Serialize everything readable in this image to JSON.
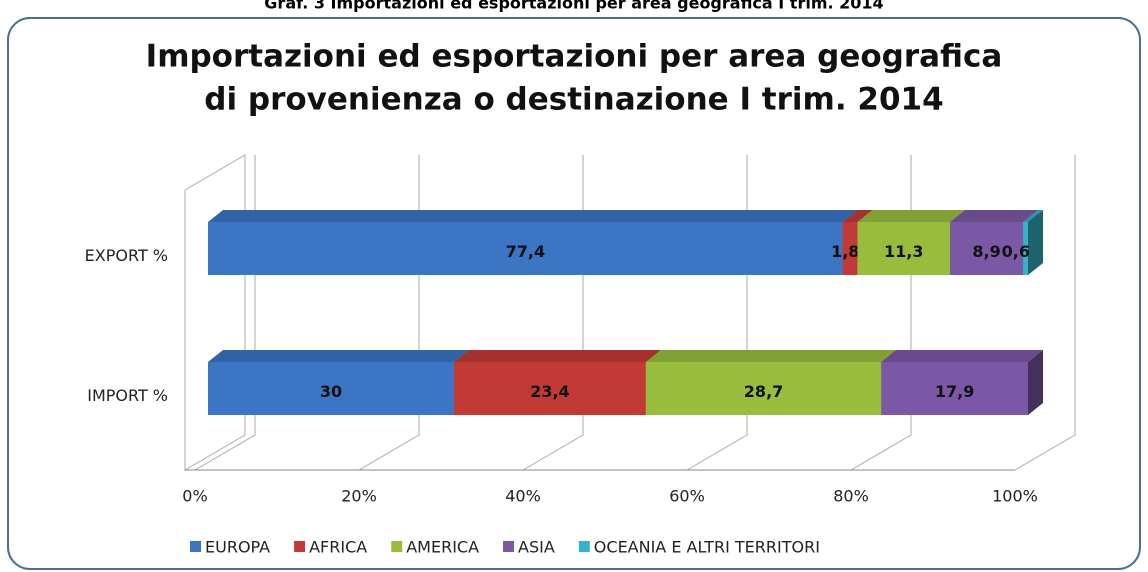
{
  "chart_data": {
    "type": "stacked-bar-horizontal",
    "caption": "Graf. 3 Importazioni ed esportazioni per area geografica I trim. 2014",
    "title": [
      "Importazioni ed esportazioni per area geografica",
      "di provenienza o destinazione I trim. 2014"
    ],
    "categories": [
      "EXPORT  %",
      "IMPORT  %"
    ],
    "series": [
      {
        "name": "EUROPA",
        "color": "#3b75c4",
        "values": [
          77.4,
          30
        ],
        "value_labels": [
          "77,4",
          "30"
        ]
      },
      {
        "name": "AFRICA",
        "color": "#c23a36",
        "values": [
          1.8,
          23.4
        ],
        "value_labels": [
          "1,8",
          "23,4"
        ]
      },
      {
        "name": "AMERICA",
        "color": "#98bd3d",
        "values": [
          11.3,
          28.7
        ],
        "value_labels": [
          "11,3",
          "28,7"
        ]
      },
      {
        "name": "ASIA",
        "color": "#7b58a5",
        "values": [
          8.9,
          17.9
        ],
        "value_labels": [
          "8,9",
          "17,9"
        ]
      },
      {
        "name": "OCEANIA E ALTRI TERRITORI",
        "color": "#36b3c9",
        "values": [
          0.6,
          null
        ],
        "value_labels": [
          "0,6",
          null
        ]
      }
    ],
    "xlim": [
      0,
      100
    ],
    "xticks": [
      {
        "value": 0,
        "label": "0%"
      },
      {
        "value": 20,
        "label": "20%"
      },
      {
        "value": 40,
        "label": "40%"
      },
      {
        "value": 60,
        "label": "60%"
      },
      {
        "value": 80,
        "label": "80%"
      },
      {
        "value": 100,
        "label": "100%"
      }
    ],
    "grid": true,
    "legend": "bottom"
  }
}
